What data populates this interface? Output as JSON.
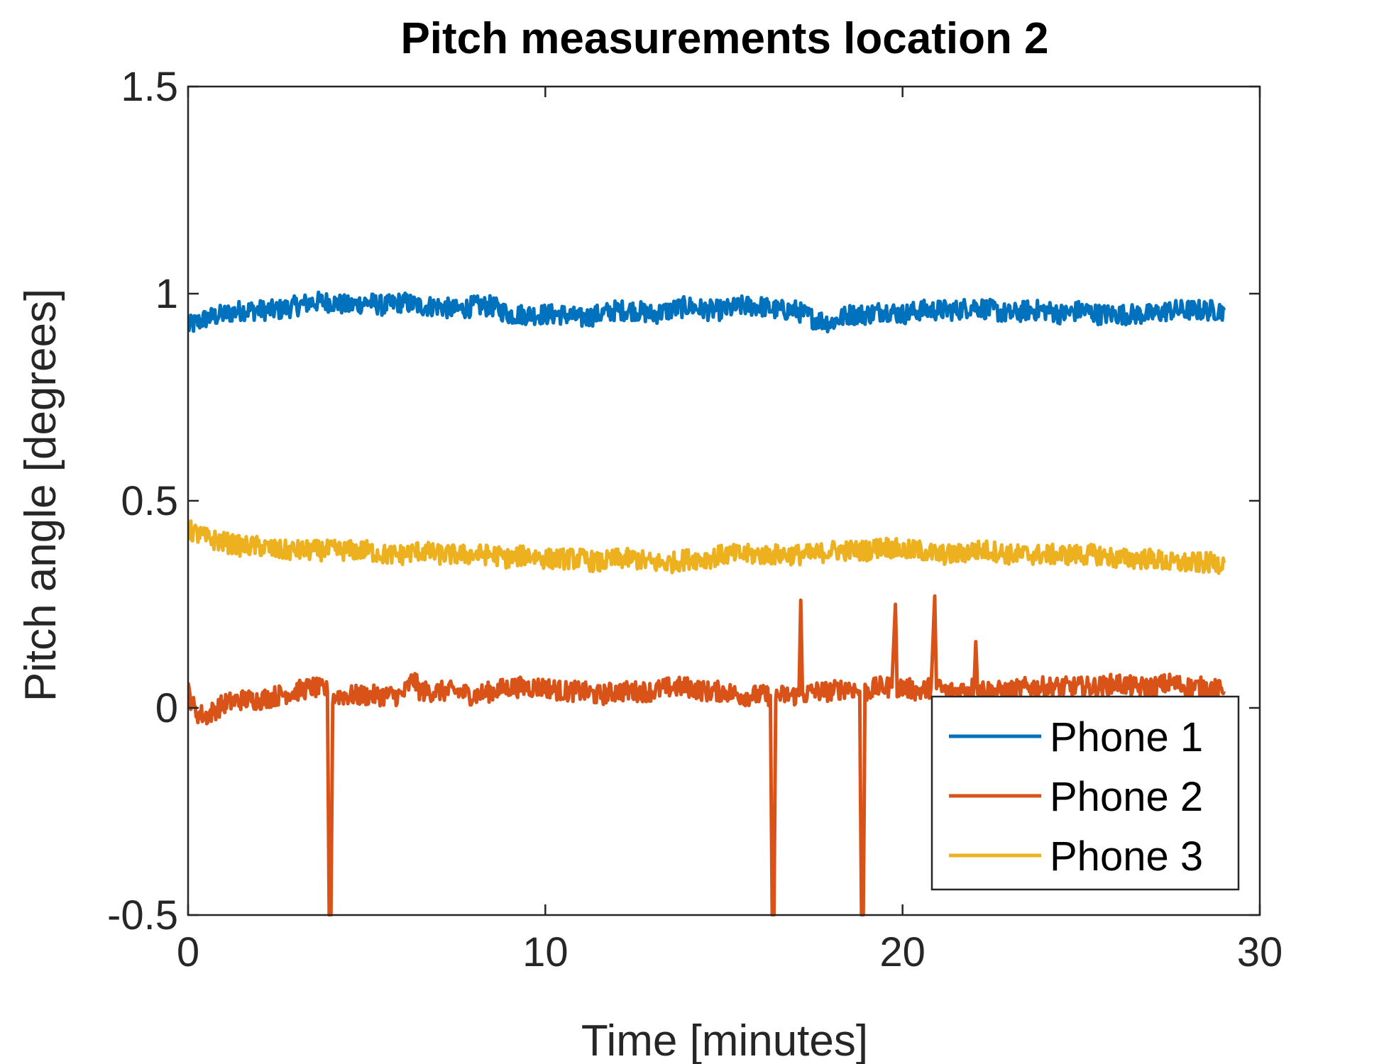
{
  "chart_data": {
    "type": "line",
    "title": "Pitch measurements location 2",
    "xlabel": "Time [minutes]",
    "ylabel": "Pitch angle [degrees]",
    "xlim": [
      0,
      30
    ],
    "ylim": [
      -0.5,
      1.5
    ],
    "xticks": [
      0,
      10,
      20,
      30
    ],
    "xtick_labels": [
      "0",
      "10",
      "20",
      "30"
    ],
    "yticks": [
      -0.5,
      0,
      0.5,
      1,
      1.5
    ],
    "ytick_labels": [
      "-0.5",
      "0",
      "0.5",
      "1",
      "1.5"
    ],
    "grid": false,
    "legend_position": "bottom-right",
    "series": [
      {
        "name": "Phone 1",
        "color": "#0072BD",
        "x": [
          0,
          0.5,
          1,
          1.5,
          2,
          2.5,
          3,
          3.5,
          4,
          4.5,
          5,
          5.5,
          6,
          6.5,
          7,
          7.5,
          8,
          8.5,
          9,
          9.5,
          10,
          10.5,
          11,
          11.5,
          12,
          12.5,
          13,
          13.5,
          14,
          14.5,
          15,
          15.5,
          16,
          16.5,
          17,
          17.5,
          18,
          18.5,
          19,
          19.5,
          20,
          20.5,
          21,
          21.5,
          22,
          22.5,
          23,
          23.5,
          24,
          24.5,
          25,
          25.5,
          26,
          26.5,
          27,
          27.5,
          28,
          28.5,
          29
        ],
        "values": [
          0.92,
          0.94,
          0.95,
          0.96,
          0.96,
          0.96,
          0.97,
          0.98,
          0.98,
          0.97,
          0.98,
          0.97,
          0.98,
          0.97,
          0.97,
          0.96,
          0.97,
          0.97,
          0.95,
          0.95,
          0.95,
          0.95,
          0.94,
          0.95,
          0.96,
          0.96,
          0.95,
          0.96,
          0.97,
          0.96,
          0.96,
          0.97,
          0.97,
          0.96,
          0.96,
          0.94,
          0.93,
          0.95,
          0.95,
          0.96,
          0.95,
          0.96,
          0.96,
          0.96,
          0.97,
          0.96,
          0.95,
          0.96,
          0.96,
          0.95,
          0.96,
          0.95,
          0.95,
          0.95,
          0.95,
          0.96,
          0.96,
          0.96,
          0.96
        ]
      },
      {
        "name": "Phone 2",
        "color": "#D95319",
        "x": [
          0,
          0.2,
          0.5,
          1,
          1.5,
          2,
          2.5,
          3,
          3.5,
          3.9,
          3.95,
          4.0,
          4.05,
          4.1,
          4.5,
          5,
          5.5,
          6,
          6.3,
          6.5,
          7,
          7.5,
          8,
          8.5,
          9,
          9.5,
          10,
          10.5,
          11,
          11.5,
          12,
          12.5,
          13,
          13.5,
          14,
          14.5,
          15,
          15.5,
          16,
          16.3,
          16.35,
          16.4,
          16.45,
          16.5,
          16.8,
          17.1,
          17.15,
          17.2,
          17.5,
          18,
          18.5,
          18.8,
          18.85,
          18.9,
          18.95,
          19,
          19.3,
          19.7,
          19.8,
          19.85,
          20,
          20.5,
          20.8,
          20.9,
          20.95,
          21.2,
          21.5,
          22,
          22.05,
          22.1,
          22.5,
          23,
          23.5,
          24,
          24.5,
          25,
          25.5,
          26,
          26.5,
          27,
          27.5,
          28,
          28.5,
          29
        ],
        "values": [
          0.04,
          -0.01,
          -0.02,
          0.01,
          0.02,
          0.02,
          0.03,
          0.04,
          0.05,
          0.04,
          -0.5,
          -0.5,
          0.03,
          0.03,
          0.03,
          0.03,
          0.03,
          0.03,
          0.07,
          0.04,
          0.04,
          0.04,
          0.03,
          0.04,
          0.05,
          0.05,
          0.05,
          0.04,
          0.04,
          0.03,
          0.04,
          0.04,
          0.04,
          0.05,
          0.05,
          0.04,
          0.04,
          0.03,
          0.03,
          0.03,
          -0.5,
          -0.5,
          0.02,
          0.03,
          0.03,
          0.03,
          0.26,
          0.03,
          0.04,
          0.04,
          0.05,
          0.04,
          -0.5,
          -0.5,
          0.04,
          0.04,
          0.05,
          0.05,
          0.25,
          0.05,
          0.05,
          0.04,
          0.05,
          0.27,
          0.05,
          0.04,
          0.04,
          0.05,
          0.16,
          0.05,
          0.04,
          0.04,
          0.05,
          0.05,
          0.05,
          0.05,
          0.05,
          0.06,
          0.05,
          0.05,
          0.06,
          0.05,
          0.05,
          0.04
        ]
      },
      {
        "name": "Phone 3",
        "color": "#EDB120",
        "x": [
          0,
          0.5,
          1,
          1.5,
          2,
          2.5,
          3,
          3.5,
          4,
          4.5,
          5,
          5.5,
          6,
          6.5,
          7,
          7.5,
          8,
          8.5,
          9,
          9.5,
          10,
          10.5,
          11,
          11.5,
          12,
          12.5,
          13,
          13.5,
          14,
          14.5,
          15,
          15.5,
          16,
          16.5,
          17,
          17.5,
          18,
          18.5,
          19,
          19.5,
          20,
          20.5,
          21,
          21.5,
          22,
          22.5,
          23,
          23.5,
          24,
          24.5,
          25,
          25.5,
          26,
          26.5,
          27,
          27.5,
          28,
          28.5,
          29
        ],
        "values": [
          0.43,
          0.41,
          0.4,
          0.39,
          0.39,
          0.38,
          0.38,
          0.38,
          0.38,
          0.38,
          0.38,
          0.37,
          0.37,
          0.38,
          0.37,
          0.37,
          0.37,
          0.37,
          0.36,
          0.37,
          0.36,
          0.36,
          0.36,
          0.35,
          0.36,
          0.36,
          0.35,
          0.35,
          0.36,
          0.36,
          0.37,
          0.37,
          0.37,
          0.37,
          0.37,
          0.37,
          0.38,
          0.38,
          0.38,
          0.39,
          0.38,
          0.38,
          0.37,
          0.37,
          0.38,
          0.38,
          0.37,
          0.37,
          0.37,
          0.37,
          0.37,
          0.37,
          0.36,
          0.36,
          0.36,
          0.35,
          0.35,
          0.35,
          0.35
        ]
      }
    ]
  }
}
